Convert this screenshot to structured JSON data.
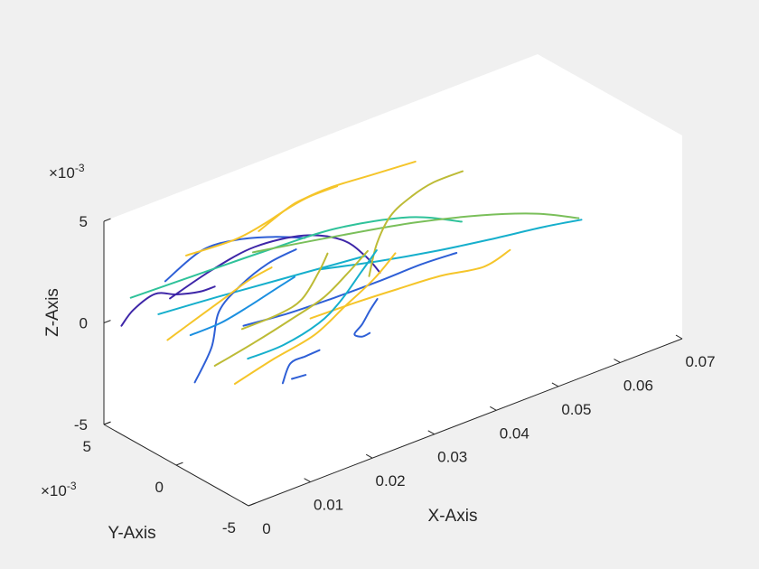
{
  "chart_data": {
    "type": "line3d",
    "title": "",
    "xlabel": "X-Axis",
    "ylabel": "Y-Axis",
    "zlabel": "Z-Axis",
    "xlim": [
      0,
      0.07
    ],
    "ylim": [
      -0.005,
      0.005
    ],
    "zlim": [
      -0.005,
      0.005
    ],
    "x_ticks": [
      "0",
      "0.01",
      "0.02",
      "0.03",
      "0.04",
      "0.05",
      "0.06",
      "0.07"
    ],
    "y_ticks": [
      "-5",
      "0",
      "5"
    ],
    "z_ticks": [
      "-5",
      "0",
      "5"
    ],
    "y_exponent": {
      "base": "×10",
      "power": "-3"
    },
    "z_exponent": {
      "base": "×10",
      "power": "-3"
    },
    "grid": false,
    "legend": "none",
    "colormap": [
      "#3e26a8",
      "#2e5fd6",
      "#1b8fe0",
      "#16afcc",
      "#2fc29a",
      "#7abf5a",
      "#bdbb36",
      "#f5c52a",
      "#f9e82a"
    ],
    "series": [
      {
        "color": "#3e26a8",
        "points": [
          [
            0.0005,
            0.004,
            0.0002
          ],
          [
            0.002,
            0.0038,
            0.0009
          ],
          [
            0.005,
            0.0036,
            0.0014
          ],
          [
            0.008,
            0.0034,
            0.0011
          ],
          [
            0.011,
            0.0031,
            0.001
          ],
          [
            0.013,
            0.0029,
            0.0011
          ]
        ]
      },
      {
        "color": "#2e5fd6",
        "points": [
          [
            0.005,
            0.0029,
            0.0023
          ],
          [
            0.01,
            0.0025,
            0.0034
          ],
          [
            0.015,
            0.0021,
            0.0035
          ],
          [
            0.02,
            0.0017,
            0.0032
          ],
          [
            0.024,
            0.0014,
            0.0028
          ]
        ]
      },
      {
        "color": "#3e26a8",
        "points": [
          [
            0.006,
            0.003,
            0.0013
          ],
          [
            0.012,
            0.0027,
            0.0021
          ],
          [
            0.018,
            0.0023,
            0.0027
          ],
          [
            0.025,
            0.0019,
            0.0026
          ],
          [
            0.03,
            0.0014,
            0.002
          ],
          [
            0.033,
            0.0011,
            0.001
          ],
          [
            0.035,
            0.0009,
            0.0
          ]
        ]
      },
      {
        "color": "#2fc29a",
        "points": [
          [
            0.002,
            0.004,
            0.0014
          ],
          [
            0.01,
            0.0034,
            0.0017
          ],
          [
            0.02,
            0.0026,
            0.0021
          ],
          [
            0.03,
            0.0018,
            0.0024
          ],
          [
            0.04,
            0.001,
            0.0021
          ],
          [
            0.047,
            0.0004,
            0.0013
          ]
        ]
      },
      {
        "color": "#16afcc",
        "points": [
          [
            0.006,
            0.0038,
            0.0002
          ],
          [
            0.014,
            0.0031,
            0.0004
          ],
          [
            0.022,
            0.0025,
            0.0005
          ],
          [
            0.028,
            0.002,
            0.0006
          ],
          [
            0.034,
            0.0015,
            0.0007
          ]
        ]
      },
      {
        "color": "#7abf5a",
        "points": [
          [
            0.018,
            0.0024,
            0.0024
          ],
          [
            0.028,
            0.0015,
            0.0023
          ],
          [
            0.04,
            0.0008,
            0.0019
          ],
          [
            0.05,
            0.0003,
            0.0013
          ],
          [
            0.058,
            -0.0001,
            0.0006
          ],
          [
            0.064,
            -0.0004,
            -0.0002
          ]
        ]
      },
      {
        "color": "#16afcc",
        "points": [
          [
            0.026,
            0.0012,
            0.0011
          ],
          [
            0.034,
            0.0006,
            0.0008
          ],
          [
            0.042,
            0.0002,
            0.0005
          ],
          [
            0.05,
            -0.0002,
            0.0003
          ],
          [
            0.058,
            -0.0005,
            0.0001
          ],
          [
            0.064,
            -0.0006,
            -0.0002
          ]
        ]
      },
      {
        "color": "#2e5fd6",
        "points": [
          [
            0.016,
            0.0022,
            -0.0009
          ],
          [
            0.022,
            0.0017,
            -0.0008
          ],
          [
            0.028,
            0.0011,
            -0.0005
          ],
          [
            0.034,
            0.0006,
            -0.0002
          ],
          [
            0.04,
            0.0002,
            0.0001
          ],
          [
            0.045,
            -0.0001,
            0.0002
          ]
        ]
      },
      {
        "color": "#f5c52a",
        "points": [
          [
            0.024,
            0.001,
            -0.001
          ],
          [
            0.03,
            0.0006,
            -0.0008
          ],
          [
            0.036,
            0.0001,
            -0.0006
          ],
          [
            0.042,
            -0.0003,
            -0.0005
          ],
          [
            0.048,
            -0.0007,
            -0.0006
          ],
          [
            0.052,
            -0.0008,
            -0.0002
          ]
        ]
      },
      {
        "color": "#f5c52a",
        "points": [
          [
            0.01,
            0.0036,
            0.0027
          ],
          [
            0.016,
            0.0028,
            0.0031
          ],
          [
            0.02,
            0.0024,
            0.0036
          ],
          [
            0.022,
            0.0019,
            0.0042
          ],
          [
            0.025,
            0.0016,
            0.0046
          ],
          [
            0.029,
            0.0013,
            0.0048
          ]
        ]
      },
      {
        "color": "#f5c52a",
        "points": [
          [
            0.018,
            0.002,
            0.0036
          ],
          [
            0.022,
            0.0018,
            0.0043
          ],
          [
            0.024,
            0.0016,
            0.0046
          ],
          [
            0.028,
            0.0014,
            0.0048
          ],
          [
            0.034,
            0.001,
            0.0049
          ],
          [
            0.04,
            0.0006,
            0.005
          ]
        ]
      },
      {
        "color": "#bdbb36",
        "points": [
          [
            0.033,
            0.0008,
            0.0001
          ],
          [
            0.034,
            0.0007,
            0.0016
          ],
          [
            0.036,
            0.0006,
            0.0028
          ],
          [
            0.039,
            0.0004,
            0.0035
          ],
          [
            0.042,
            0.0002,
            0.0039
          ],
          [
            0.046,
            -0.0001,
            0.0041
          ]
        ]
      },
      {
        "color": "#f5c52a",
        "points": [
          [
            0.016,
            0.0028,
            -0.004
          ],
          [
            0.021,
            0.0022,
            -0.0031
          ],
          [
            0.026,
            0.0016,
            -0.0023
          ],
          [
            0.03,
            0.0012,
            -0.0012
          ],
          [
            0.034,
            0.0009,
            -0.0002
          ],
          [
            0.037,
            0.0007,
            0.0008
          ]
        ]
      },
      {
        "color": "#bdbb36",
        "points": [
          [
            0.016,
            0.0023,
            -0.0011
          ],
          [
            0.021,
            0.0019,
            -0.0008
          ],
          [
            0.024,
            0.0016,
            -0.0003
          ],
          [
            0.026,
            0.0013,
            0.0009
          ],
          [
            0.027,
            0.0011,
            0.0018
          ]
        ]
      },
      {
        "color": "#16afcc",
        "points": [
          [
            0.016,
            0.0019,
            -0.0024
          ],
          [
            0.021,
            0.0016,
            -0.0022
          ],
          [
            0.026,
            0.0013,
            -0.0016
          ],
          [
            0.029,
            0.0011,
            -0.0008
          ],
          [
            0.032,
            0.0009,
            0.0004
          ],
          [
            0.034,
            0.0007,
            0.0013
          ]
        ]
      },
      {
        "color": "#2e5fd6",
        "points": [
          [
            0.01,
            0.003,
            -0.0033
          ],
          [
            0.012,
            0.0027,
            -0.0017
          ],
          [
            0.013,
            0.0026,
            0.0
          ],
          [
            0.016,
            0.0024,
            0.001
          ],
          [
            0.02,
            0.0022,
            0.0017
          ],
          [
            0.024,
            0.002,
            0.002
          ]
        ]
      },
      {
        "color": "#1b8fe0",
        "points": [
          [
            0.01,
            0.0033,
            -0.0011
          ],
          [
            0.014,
            0.0029,
            -0.0008
          ],
          [
            0.018,
            0.0026,
            -0.0003
          ],
          [
            0.021,
            0.0023,
            0.0002
          ],
          [
            0.024,
            0.0021,
            0.0006
          ]
        ]
      },
      {
        "color": "#bdbb36",
        "points": [
          [
            0.013,
            0.0029,
            -0.0028
          ],
          [
            0.018,
            0.0023,
            -0.002
          ],
          [
            0.023,
            0.0018,
            -0.0012
          ],
          [
            0.027,
            0.0014,
            -0.0005
          ],
          [
            0.03,
            0.0011,
            0.0004
          ],
          [
            0.033,
            0.0009,
            0.0013
          ]
        ]
      },
      {
        "color": "#2e5fd6",
        "points": [
          [
            0.032,
            -0.0002,
            -0.0005
          ],
          [
            0.031,
            -0.0001,
            -0.001
          ],
          [
            0.03,
            0.0,
            -0.0016
          ],
          [
            0.029,
            0.0001,
            -0.002
          ],
          [
            0.03,
            0.0,
            -0.0022
          ],
          [
            0.031,
            -0.0001,
            -0.0021
          ]
        ]
      },
      {
        "color": "#2e5fd6",
        "points": [
          [
            0.014,
            -0.002,
            -0.0016
          ],
          [
            0.016,
            -0.0021,
            -0.0016
          ]
        ]
      },
      {
        "color": "#f5c52a",
        "points": [
          [
            0.007,
            0.0036,
            -0.0011
          ],
          [
            0.011,
            0.0033,
            -0.0004
          ],
          [
            0.015,
            0.003,
            0.0003
          ],
          [
            0.018,
            0.0027,
            0.0009
          ],
          [
            0.021,
            0.0024,
            0.0013
          ]
        ]
      },
      {
        "color": "#2e5fd6",
        "points": [
          [
            0.02,
            0.0012,
            -0.0038
          ],
          [
            0.021,
            0.0011,
            -0.0029
          ],
          [
            0.023,
            0.0009,
            -0.0027
          ],
          [
            0.025,
            0.0008,
            -0.0026
          ]
        ]
      }
    ]
  }
}
